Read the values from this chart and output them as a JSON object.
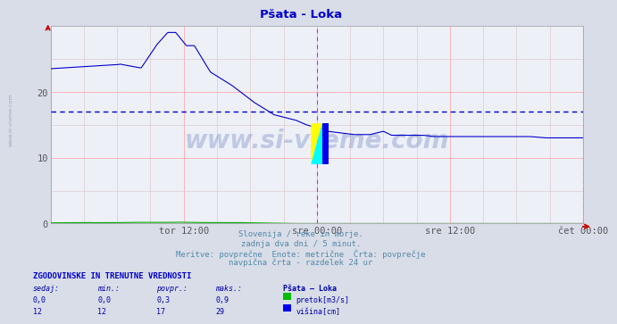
{
  "title": "Pšata - Loka",
  "title_color": "#0000cc",
  "bg_color": "#d8dde8",
  "plot_bg_color": "#eef0f8",
  "grid_color_major": "#ffaaaa",
  "grid_color_minor": "#ddcccc",
  "x_tick_labels": [
    "tor 12:00",
    "sre 00:00",
    "sre 12:00",
    "čet 00:00"
  ],
  "x_tick_positions": [
    0.25,
    0.5,
    0.75,
    1.0
  ],
  "ylim": [
    0,
    30
  ],
  "yticks": [
    0,
    10,
    20
  ],
  "avg_line_y": 17,
  "avg_line_color": "#0000cc",
  "vline_color": "#ff00ff",
  "vline_positions": [
    0.5,
    1.0
  ],
  "watermark": "www.si-vreme.com",
  "watermark_color": "#3355aa",
  "watermark_alpha": 0.25,
  "sidebar_text": "www.si-vreme.com",
  "subtitle_lines": [
    "Slovenija / reke in morje.",
    "zadnja dva dni / 5 minut.",
    "Meritve: povprečne  Enote: metrične  Črta: povprečje",
    "navpična črta - razdelek 24 ur"
  ],
  "subtitle_color": "#5588aa",
  "table_header": "ZGODOVINSKE IN TRENUTNE VREDNOSTI",
  "table_header_color": "#0000cc",
  "col_headers": [
    "sedaj:",
    "min.:",
    "povpr.:",
    "maks.:",
    "Pšata – Loka"
  ],
  "row1": [
    "0,0",
    "0,0",
    "0,3",
    "0,9",
    "pretok[m3/s]"
  ],
  "row2": [
    "12",
    "12",
    "17",
    "29",
    "višina[cm]"
  ],
  "row_color": "#0000aa",
  "legend_color_pretok": "#00bb00",
  "logo_yellow": "#ffff00",
  "logo_cyan": "#00ffff",
  "logo_blue": "#0000ee",
  "line_color_height": "#0000cc",
  "line_color_flow": "#00aa00",
  "arrow_color": "#cc0000"
}
